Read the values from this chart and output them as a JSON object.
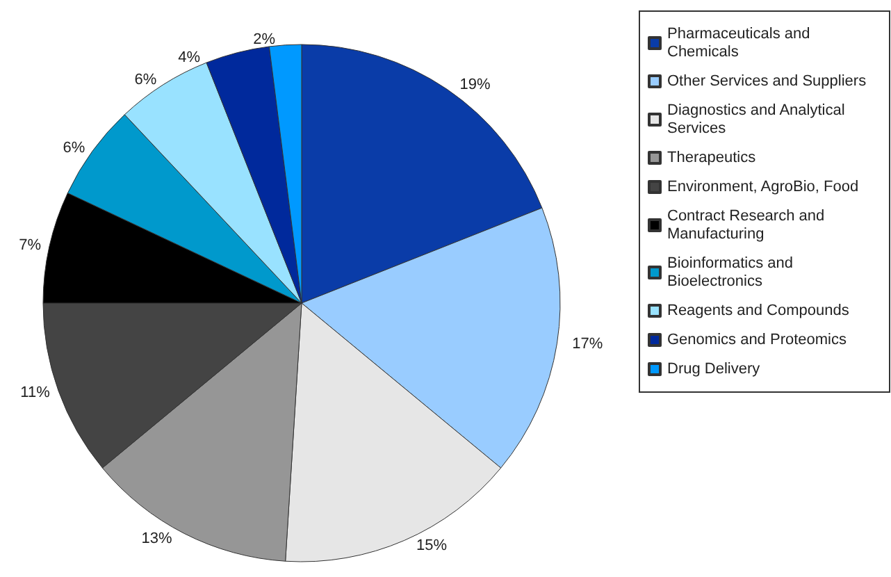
{
  "chart_data": {
    "type": "pie",
    "categories": [
      "Pharmaceuticals and Chemicals",
      "Other Services and Suppliers",
      "Diagnostics and Analytical Services",
      "Therapeutics",
      "Environment, AgroBio, Food",
      "Contract Research and Manufacturing",
      "Bioinformatics and Bioelectronics",
      "Reagents and Compounds",
      "Genomics and Proteomics",
      "Drug Delivery"
    ],
    "values": [
      19,
      17,
      15,
      13,
      11,
      7,
      6,
      6,
      4,
      2
    ],
    "colors": [
      "#0a3ca8",
      "#99ccff",
      "#e6e6e6",
      "#969696",
      "#444444",
      "#000000",
      "#0099cc",
      "#99e2ff",
      "#00299c",
      "#0099ff"
    ],
    "value_labels": [
      "19%",
      "17%",
      "15%",
      "13%",
      "11%",
      "7%",
      "6%",
      "6%",
      "4%",
      "2%"
    ],
    "legend": "right"
  }
}
